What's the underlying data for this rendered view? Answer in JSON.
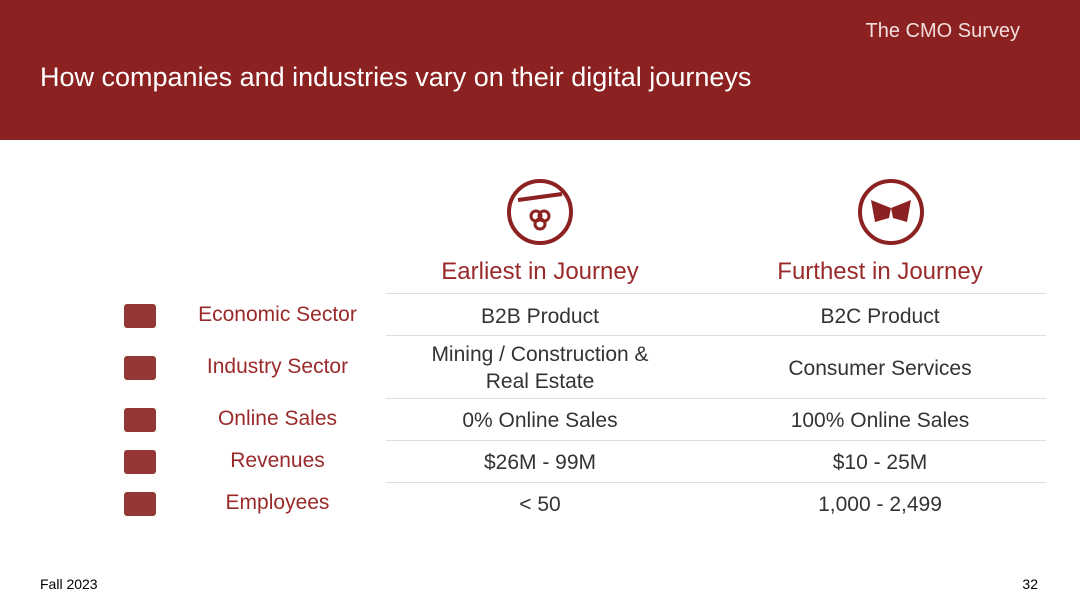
{
  "header": {
    "title": "How companies and industries vary on their digital journeys",
    "logo": "The CMO Survey"
  },
  "table": {
    "columns": [
      "Earliest in Journey",
      "Furthest in Journey"
    ],
    "rows": [
      [
        "Economic Sector",
        "B2B Product",
        "B2C Product"
      ],
      [
        "Industry Sector",
        "Mining / Construction & Real Estate",
        "Consumer Services"
      ],
      [
        "Online Sales",
        "0% Online Sales",
        "100% Online Sales"
      ],
      [
        "Revenues",
        "$26M - 99M",
        "$10 - 25M"
      ],
      [
        "Employees",
        "< 50",
        "1,000 - 2,499"
      ]
    ]
  },
  "footer": {
    "left": "Fall 2023",
    "page": "32"
  }
}
